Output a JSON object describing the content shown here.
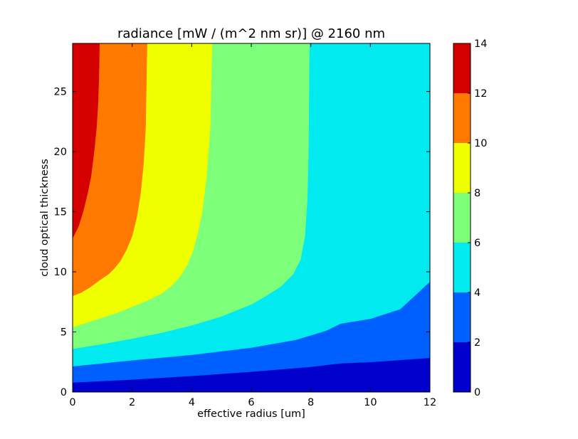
{
  "chart_data": {
    "type": "contourf",
    "title": "radiance [mW / (m^2 nm sr)] @ 2160 nm",
    "xlabel": "effective radius [um]",
    "ylabel": "cloud optical thickness",
    "xlim": [
      0,
      12
    ],
    "ylim": [
      0,
      29
    ],
    "x_ticks": [
      0,
      2,
      4,
      6,
      8,
      10,
      12
    ],
    "x_tick_labels": [
      "0",
      "2",
      "4",
      "6",
      "8",
      "10",
      "12"
    ],
    "y_ticks": [
      0,
      5,
      10,
      15,
      20,
      25
    ],
    "y_tick_labels": [
      "0",
      "5",
      "10",
      "15",
      "20",
      "25"
    ],
    "grid": false,
    "colorbar": {
      "ticks": [
        0,
        2,
        4,
        6,
        8,
        10,
        12,
        14
      ],
      "tick_labels": [
        "0",
        "2",
        "4",
        "6",
        "8",
        "10",
        "12",
        "14"
      ],
      "range": [
        0,
        14
      ]
    },
    "levels": [
      {
        "min": 0,
        "max": 2,
        "color": "#0000cd"
      },
      {
        "min": 2,
        "max": 4,
        "color": "#0060ff"
      },
      {
        "min": 4,
        "max": 6,
        "color": "#00eaf0"
      },
      {
        "min": 6,
        "max": 8,
        "color": "#7dff7a"
      },
      {
        "min": 8,
        "max": 10,
        "color": "#f0ff00"
      },
      {
        "min": 10,
        "max": 12,
        "color": "#ff7800"
      },
      {
        "min": 12,
        "max": 14,
        "color": "#d40000"
      }
    ],
    "contours": [
      {
        "level": 2,
        "points": [
          [
            0,
            0.8
          ],
          [
            2,
            1.05
          ],
          [
            4,
            1.35
          ],
          [
            6,
            1.7
          ],
          [
            8,
            2.1
          ],
          [
            9,
            2.4
          ],
          [
            10,
            2.5
          ],
          [
            12,
            2.85
          ]
        ]
      },
      {
        "level": 4,
        "points": [
          [
            0,
            2.15
          ],
          [
            2,
            2.65
          ],
          [
            4,
            3.1
          ],
          [
            6,
            3.7
          ],
          [
            7.5,
            4.35
          ],
          [
            8.5,
            5.1
          ],
          [
            9,
            5.7
          ],
          [
            10,
            6.1
          ],
          [
            11,
            6.9
          ],
          [
            12,
            9.2
          ]
        ]
      },
      {
        "level": 6,
        "points": [
          [
            0,
            3.6
          ],
          [
            1,
            4.0
          ],
          [
            2,
            4.45
          ],
          [
            3,
            4.95
          ],
          [
            4,
            5.55
          ],
          [
            5,
            6.3
          ],
          [
            5.5,
            6.8
          ],
          [
            6,
            7.3
          ],
          [
            6.5,
            8.0
          ],
          [
            7,
            8.8
          ],
          [
            7.4,
            9.8
          ],
          [
            7.65,
            11.0
          ],
          [
            7.8,
            13.0
          ],
          [
            7.88,
            16.0
          ],
          [
            7.92,
            20.0
          ],
          [
            7.95,
            29.0
          ]
        ]
      },
      {
        "level": 8,
        "points": [
          [
            0,
            5.4
          ],
          [
            0.5,
            5.8
          ],
          [
            1,
            6.2
          ],
          [
            1.5,
            6.6
          ],
          [
            2,
            7.1
          ],
          [
            2.5,
            7.6
          ],
          [
            3,
            8.2
          ],
          [
            3.3,
            8.8
          ],
          [
            3.6,
            9.6
          ],
          [
            3.85,
            10.6
          ],
          [
            4.05,
            11.8
          ],
          [
            4.2,
            13.2
          ],
          [
            4.35,
            15.0
          ],
          [
            4.5,
            18.0
          ],
          [
            4.62,
            22.0
          ],
          [
            4.68,
            29.0
          ]
        ]
      },
      {
        "level": 10,
        "points": [
          [
            0,
            8.0
          ],
          [
            0.3,
            8.3
          ],
          [
            0.6,
            8.75
          ],
          [
            0.9,
            9.3
          ],
          [
            1.2,
            9.8
          ],
          [
            1.4,
            10.3
          ],
          [
            1.6,
            10.9
          ],
          [
            1.8,
            11.8
          ],
          [
            2.0,
            13.0
          ],
          [
            2.15,
            14.5
          ],
          [
            2.28,
            16.5
          ],
          [
            2.38,
            19.0
          ],
          [
            2.45,
            22.0
          ],
          [
            2.48,
            26.0
          ],
          [
            2.5,
            29.0
          ]
        ]
      },
      {
        "level": 12,
        "points": [
          [
            0,
            12.8
          ],
          [
            0.2,
            13.8
          ],
          [
            0.35,
            15.0
          ],
          [
            0.5,
            16.5
          ],
          [
            0.62,
            18.0
          ],
          [
            0.72,
            20.0
          ],
          [
            0.8,
            22.0
          ],
          [
            0.85,
            24.0
          ],
          [
            0.88,
            26.0
          ],
          [
            0.9,
            29.0
          ]
        ]
      }
    ]
  }
}
